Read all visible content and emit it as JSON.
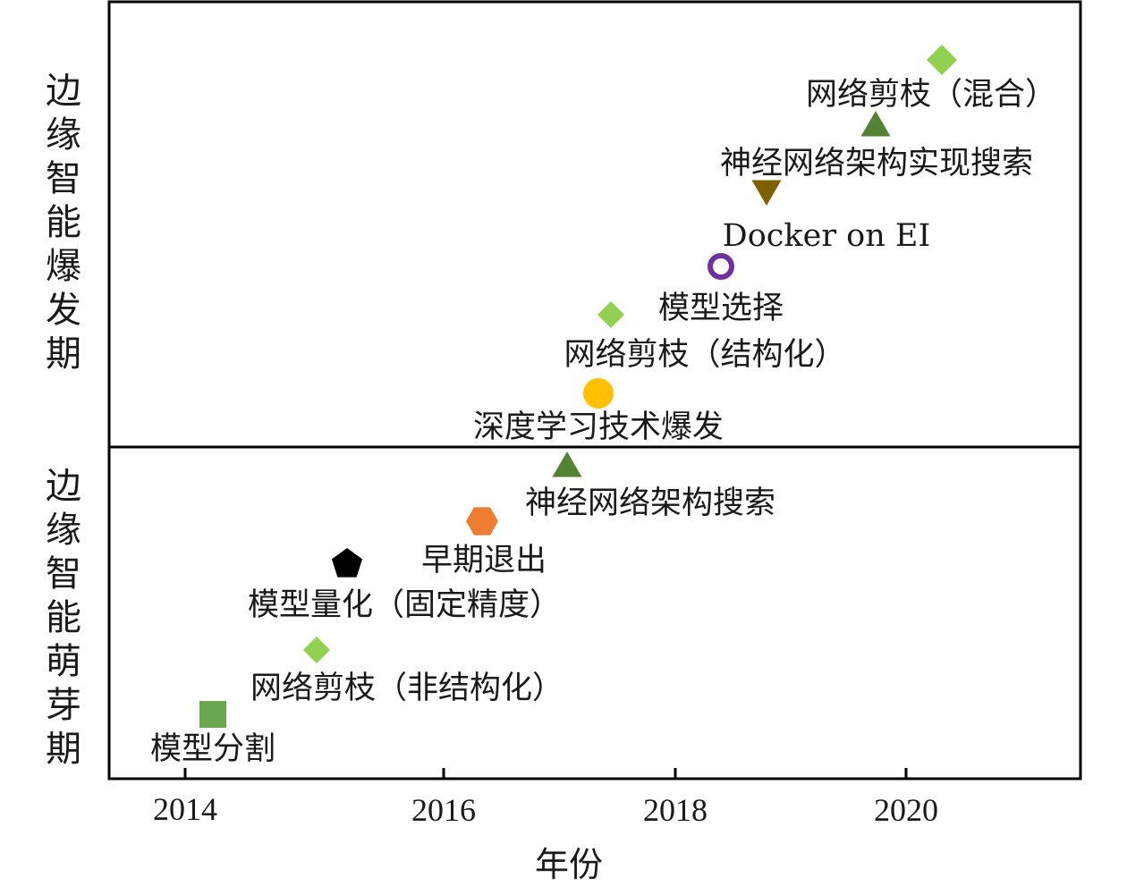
{
  "chart_data": {
    "type": "scatter",
    "title": "",
    "xlabel": "年份",
    "ylabel": "",
    "xlim": [
      2013.6,
      2021.6
    ],
    "xticks": [
      {
        "value": 2014.0,
        "label": "2014"
      },
      {
        "value": 2016.0,
        "label": "2016"
      },
      {
        "value": 2018.0,
        "label": "2018"
      },
      {
        "value": 2020.0,
        "label": "2020"
      }
    ],
    "phases": [
      {
        "name": "budding",
        "label": "边缘智能萌芽期"
      },
      {
        "name": "explosion",
        "label": "边缘智能爆发期"
      }
    ],
    "points": [
      {
        "name": "model-partition",
        "label": "模型分割",
        "year": 2014.25,
        "phase": "budding",
        "marker": "square",
        "color": "#6aa84f",
        "label_pos": "below"
      },
      {
        "name": "pruning-unstructured",
        "label": "网络剪枝（非结构化）",
        "year": 2015.0,
        "phase": "budding",
        "marker": "diamond",
        "color": "#92d050",
        "label_pos": "below"
      },
      {
        "name": "quantization-fixed",
        "label": "模型量化（固定精度）",
        "year": 2015.25,
        "phase": "budding",
        "marker": "pentagon",
        "color": "#000000",
        "label_pos": "below"
      },
      {
        "name": "early-exit",
        "label": "早期退出",
        "year": 2016.3,
        "phase": "budding",
        "marker": "hexagon",
        "color": "#ed7d31",
        "label_pos": "below"
      },
      {
        "name": "nas",
        "label": "神经网络架构搜索",
        "year": 2017.0,
        "phase": "budding",
        "marker": "triangle-up",
        "color": "#548235",
        "label_pos": "below"
      },
      {
        "name": "deep-learning-boom",
        "label": "深度学习技术爆发",
        "year": 2017.3,
        "phase": "explosion",
        "marker": "circle",
        "color": "#ffc000",
        "label_pos": "below"
      },
      {
        "name": "pruning-structured",
        "label": "网络剪枝（结构化）",
        "year": 2017.45,
        "phase": "explosion",
        "marker": "diamond",
        "color": "#92d050",
        "label_pos": "below"
      },
      {
        "name": "model-selection",
        "label": "模型选择",
        "year": 2018.4,
        "phase": "explosion",
        "marker": "ring",
        "color": "#7030a0",
        "label_pos": "below"
      },
      {
        "name": "docker-on-ei",
        "label": "Docker on EI",
        "year": 2018.8,
        "phase": "explosion",
        "marker": "triangle-down",
        "color": "#7f6000",
        "label_pos": "below"
      },
      {
        "name": "nas-implementation",
        "label": "神经网络架构实现搜索",
        "year": 2019.7,
        "phase": "explosion",
        "marker": "triangle-up",
        "color": "#548235",
        "label_pos": "below"
      },
      {
        "name": "pruning-hybrid",
        "label": "网络剪枝（混合）",
        "year": 2020.3,
        "phase": "explosion",
        "marker": "diamond",
        "color": "#92d050",
        "label_pos": "below"
      }
    ]
  }
}
